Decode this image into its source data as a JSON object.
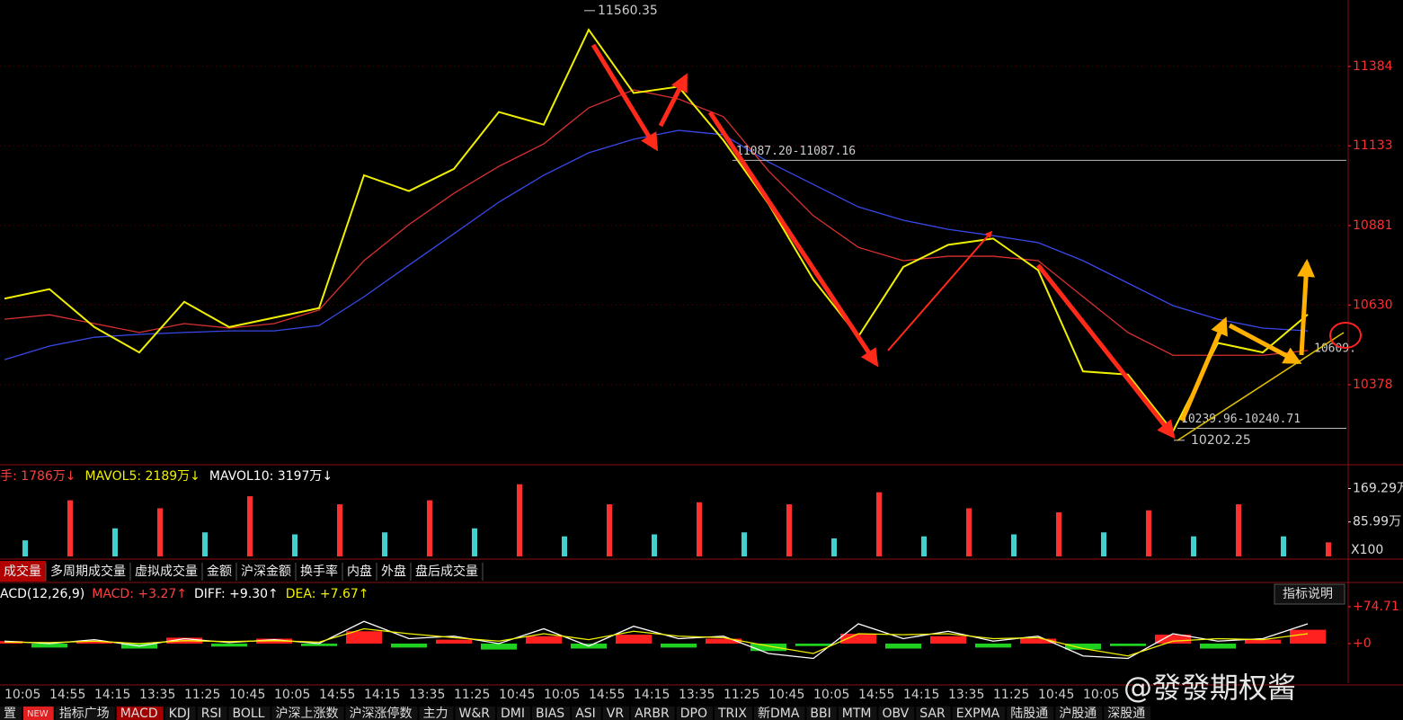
{
  "chart_data": [
    {
      "type": "line",
      "categories": [
        "10:05",
        "14:55",
        "14:15",
        "13:35",
        "11:25",
        "10:45",
        "10:05",
        "14:55",
        "14:15",
        "13:35",
        "11:25",
        "10:45",
        "10:05",
        "14:55",
        "14:15",
        "13:35",
        "11:25",
        "10:45",
        "10:05",
        "14:55",
        "14:15",
        "13:35",
        "11:25",
        "10:45",
        "10:05",
        null,
        null,
        null,
        null,
        null
      ],
      "series": [
        {
          "color": "#f0f000",
          "values": [
            10650,
            10680,
            10560,
            10480,
            10640,
            10560,
            10590,
            10620,
            11040,
            10990,
            11060,
            11240,
            11200,
            11500,
            11300,
            11320,
            11150,
            10950,
            10710,
            10530,
            10750,
            10820,
            10840,
            10740,
            10420,
            10410,
            10230,
            10510,
            10480,
            10600
          ]
        },
        {
          "color": "#d83030",
          "values": [
            10585,
            10599,
            10571,
            10543,
            10571,
            10557,
            10571,
            10614,
            10770,
            10884,
            10983,
            11068,
            11139,
            11253,
            11310,
            11281,
            11225,
            11054,
            10912,
            10812,
            10770,
            10784,
            10784,
            10770,
            10656,
            10543,
            10471,
            10471,
            10471,
            10486
          ]
        },
        {
          "color": "#3848e8",
          "values": [
            10457,
            10500,
            10528,
            10537,
            10543,
            10548,
            10548,
            10565,
            10656,
            10756,
            10855,
            10955,
            11040,
            11111,
            11154,
            11182,
            11168,
            11082,
            11011,
            10940,
            10898,
            10869,
            10849,
            10827,
            10770,
            10699,
            10628,
            10585,
            10557,
            10548
          ]
        }
      ],
      "ylim": [
        10125,
        11594
      ],
      "yticks": [
        10378,
        10630,
        10881,
        11133,
        11384
      ],
      "high": 11560.35,
      "low": 10202.25,
      "upper_line": {
        "value": 11087.2,
        "label": "11087.20-11087.16"
      },
      "lower_line": {
        "value": 10240,
        "label": "10239.96-10240.71"
      },
      "right_label": "10609."
    },
    {
      "type": "bar",
      "header": [
        {
          "text": "手: 1786万↓",
          "color": "#ff4040"
        },
        {
          "text": "MAVOL5: 2189万↓",
          "color": "#f0f000"
        },
        {
          "text": "MAVOL10: 3197万↓",
          "color": "#ffffff"
        }
      ],
      "values": [
        40,
        140,
        70,
        120,
        60,
        150,
        55,
        130,
        60,
        140,
        70,
        180,
        50,
        130,
        55,
        135,
        60,
        130,
        45,
        160,
        50,
        120,
        55,
        110,
        60,
        115,
        50,
        130,
        50,
        35
      ],
      "color": "#ff3030",
      "ylim": [
        0,
        222
      ],
      "yticks": [
        {
          "value": 169.29,
          "label": "169.29万"
        },
        {
          "value": 85.99,
          "label": "85.99万"
        }
      ],
      "unit": "X100"
    },
    {
      "type": "macd",
      "header": [
        {
          "text": "ACD(12,26,9)",
          "color": "#ffffff"
        },
        {
          "text": "MACD: +3.27↑",
          "color": "#ff4040"
        },
        {
          "text": "DIFF: +9.30↑",
          "color": "#ffffff"
        },
        {
          "text": "DEA: +7.67↑",
          "color": "#f0f000"
        }
      ],
      "values": [
        5,
        -8,
        4,
        -10,
        12,
        -6,
        10,
        -5,
        25,
        -8,
        8,
        -12,
        15,
        -10,
        18,
        -8,
        10,
        -15,
        -5,
        20,
        -10,
        15,
        -8,
        10,
        -12,
        -5,
        18,
        -10,
        8,
        28
      ],
      "series": [
        {
          "color": "#ffffff",
          "values": [
            5,
            0,
            8,
            -5,
            10,
            2,
            8,
            0,
            45,
            10,
            15,
            0,
            30,
            -5,
            35,
            10,
            15,
            -20,
            -30,
            40,
            10,
            25,
            5,
            15,
            -25,
            -30,
            20,
            5,
            10,
            40
          ]
        },
        {
          "color": "#f0f000",
          "values": [
            3,
            2,
            5,
            0,
            6,
            4,
            6,
            3,
            30,
            20,
            12,
            5,
            20,
            8,
            25,
            15,
            12,
            -5,
            -20,
            20,
            18,
            20,
            10,
            12,
            -10,
            -25,
            5,
            10,
            8,
            20
          ]
        }
      ],
      "ylim": [
        -80,
        120
      ],
      "yticks": [
        {
          "value": 74.71,
          "label": "+74.71"
        },
        {
          "value": 0,
          "label": "+0"
        }
      ],
      "button": "指标说明"
    }
  ],
  "ui": {
    "tabs": [
      "成交量",
      "多周期成交量",
      "虚拟成交量",
      "金额",
      "沪深金额",
      "换手率",
      "内盘",
      "外盘",
      "盘后成交量"
    ],
    "toolbar": [
      "置",
      "NEW",
      "指标广场",
      "MACD",
      "KDJ",
      "RSI",
      "BOLL",
      "沪深上涨数",
      "沪深涨停数",
      "主力",
      "W&R",
      "DMI",
      "BIAS",
      "ASI",
      "VR",
      "ARBR",
      "DPO",
      "TRIX",
      "新DMA",
      "BBI",
      "MTM",
      "OBV",
      "SAR",
      "EXPMA",
      "陆股通",
      "沪股通",
      "深股通"
    ],
    "watermark": "@發發期权酱"
  }
}
